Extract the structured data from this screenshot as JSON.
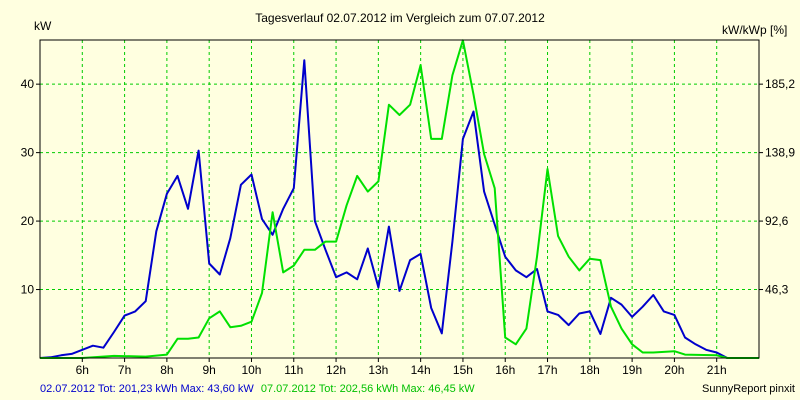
{
  "chart_data": {
    "type": "line",
    "title": "Tagesverlauf 02.07.2012 im Vergleich zum 07.07.2012",
    "ylabel_left": "kW",
    "ylabel_right": "kW/kWp [%]",
    "x_range": [
      5.0,
      22.0
    ],
    "x_ticks": [
      {
        "x": 6,
        "label": "6h"
      },
      {
        "x": 7,
        "label": "7h"
      },
      {
        "x": 8,
        "label": "8h"
      },
      {
        "x": 9,
        "label": "9h"
      },
      {
        "x": 10,
        "label": "10h"
      },
      {
        "x": 11,
        "label": "11h"
      },
      {
        "x": 12,
        "label": "12h"
      },
      {
        "x": 13,
        "label": "13h"
      },
      {
        "x": 14,
        "label": "14h"
      },
      {
        "x": 15,
        "label": "15h"
      },
      {
        "x": 16,
        "label": "16h"
      },
      {
        "x": 17,
        "label": "17h"
      },
      {
        "x": 18,
        "label": "18h"
      },
      {
        "x": 19,
        "label": "19h"
      },
      {
        "x": 20,
        "label": "20h"
      },
      {
        "x": 21,
        "label": "21h"
      }
    ],
    "y_left": {
      "ylim": [
        0,
        46.45
      ],
      "ticks": [
        10,
        20,
        30,
        40
      ]
    },
    "y_right": {
      "ticks": [
        {
          "y": 10,
          "label": "46,3"
        },
        {
          "y": 20,
          "label": "92,6"
        },
        {
          "y": 30,
          "label": "138,9"
        },
        {
          "y": 40,
          "label": "185,2"
        }
      ]
    },
    "grid": true,
    "series": [
      {
        "name": "02.07.2012 Tot: 201,23 kWh Max: 43,60 kW",
        "color": "#0000cc",
        "points": [
          [
            5.0,
            0.0
          ],
          [
            5.25,
            0.1
          ],
          [
            5.5,
            0.4
          ],
          [
            5.75,
            0.6
          ],
          [
            6.0,
            1.2
          ],
          [
            6.25,
            1.8
          ],
          [
            6.5,
            1.5
          ],
          [
            6.75,
            3.8
          ],
          [
            7.0,
            6.2
          ],
          [
            7.25,
            6.8
          ],
          [
            7.5,
            8.3
          ],
          [
            7.75,
            18.5
          ],
          [
            8.0,
            24.0
          ],
          [
            8.25,
            26.6
          ],
          [
            8.5,
            21.8
          ],
          [
            8.75,
            30.3
          ],
          [
            9.0,
            13.8
          ],
          [
            9.25,
            12.2
          ],
          [
            9.5,
            17.5
          ],
          [
            9.75,
            25.3
          ],
          [
            10.0,
            26.8
          ],
          [
            10.25,
            20.3
          ],
          [
            10.5,
            18.0
          ],
          [
            10.75,
            21.8
          ],
          [
            11.0,
            24.8
          ],
          [
            11.25,
            43.5
          ],
          [
            11.5,
            20.0
          ],
          [
            11.75,
            15.8
          ],
          [
            12.0,
            11.8
          ],
          [
            12.25,
            12.5
          ],
          [
            12.5,
            11.5
          ],
          [
            12.75,
            16.0
          ],
          [
            13.0,
            10.3
          ],
          [
            13.25,
            19.2
          ],
          [
            13.5,
            9.8
          ],
          [
            13.75,
            14.3
          ],
          [
            14.0,
            15.2
          ],
          [
            14.25,
            7.3
          ],
          [
            14.5,
            3.6
          ],
          [
            14.75,
            17.0
          ],
          [
            15.0,
            32.0
          ],
          [
            15.25,
            36.0
          ],
          [
            15.5,
            24.3
          ],
          [
            15.75,
            19.5
          ],
          [
            16.0,
            14.8
          ],
          [
            16.25,
            12.8
          ],
          [
            16.5,
            11.8
          ],
          [
            16.75,
            13.0
          ],
          [
            17.0,
            6.8
          ],
          [
            17.25,
            6.3
          ],
          [
            17.5,
            4.8
          ],
          [
            17.75,
            6.5
          ],
          [
            18.0,
            6.8
          ],
          [
            18.25,
            3.5
          ],
          [
            18.5,
            8.8
          ],
          [
            18.75,
            7.8
          ],
          [
            19.0,
            6.0
          ],
          [
            19.25,
            7.5
          ],
          [
            19.5,
            9.2
          ],
          [
            19.75,
            6.8
          ],
          [
            20.0,
            6.3
          ],
          [
            20.25,
            3.0
          ],
          [
            20.5,
            2.0
          ],
          [
            20.75,
            1.2
          ],
          [
            21.0,
            0.8
          ],
          [
            21.25,
            0.0
          ],
          [
            22.0,
            0.0
          ]
        ]
      },
      {
        "name": "07.07.2012 Tot: 202,56 kWh Max: 46,45 kW",
        "color": "#00e000",
        "points": [
          [
            5.0,
            0.0
          ],
          [
            6.0,
            0.0
          ],
          [
            6.75,
            0.3
          ],
          [
            7.5,
            0.2
          ],
          [
            8.0,
            0.5
          ],
          [
            8.25,
            2.8
          ],
          [
            8.5,
            2.8
          ],
          [
            8.75,
            3.0
          ],
          [
            9.0,
            5.8
          ],
          [
            9.25,
            6.8
          ],
          [
            9.5,
            4.5
          ],
          [
            9.75,
            4.7
          ],
          [
            10.0,
            5.3
          ],
          [
            10.25,
            9.5
          ],
          [
            10.5,
            21.3
          ],
          [
            10.75,
            12.5
          ],
          [
            11.0,
            13.5
          ],
          [
            11.25,
            15.8
          ],
          [
            11.5,
            15.8
          ],
          [
            11.75,
            17.0
          ],
          [
            12.0,
            17.0
          ],
          [
            12.25,
            22.3
          ],
          [
            12.5,
            26.6
          ],
          [
            12.75,
            24.3
          ],
          [
            13.0,
            25.8
          ],
          [
            13.25,
            37.0
          ],
          [
            13.5,
            35.5
          ],
          [
            13.75,
            37.0
          ],
          [
            14.0,
            42.8
          ],
          [
            14.25,
            32.0
          ],
          [
            14.5,
            32.0
          ],
          [
            14.75,
            41.3
          ],
          [
            15.0,
            46.4
          ],
          [
            15.25,
            38.5
          ],
          [
            15.5,
            29.8
          ],
          [
            15.75,
            24.8
          ],
          [
            16.0,
            3.0
          ],
          [
            16.25,
            2.0
          ],
          [
            16.5,
            4.3
          ],
          [
            16.75,
            14.8
          ],
          [
            17.0,
            27.6
          ],
          [
            17.25,
            17.8
          ],
          [
            17.5,
            14.8
          ],
          [
            17.75,
            12.8
          ],
          [
            18.0,
            14.5
          ],
          [
            18.25,
            14.3
          ],
          [
            18.5,
            7.5
          ],
          [
            18.75,
            4.3
          ],
          [
            19.0,
            2.0
          ],
          [
            19.25,
            0.8
          ],
          [
            19.5,
            0.8
          ],
          [
            20.0,
            1.0
          ],
          [
            20.25,
            0.5
          ],
          [
            21.0,
            0.4
          ],
          [
            21.25,
            0.0
          ],
          [
            22.0,
            0.0
          ]
        ]
      }
    ],
    "footer_right": "SunnyReport pinxit"
  }
}
